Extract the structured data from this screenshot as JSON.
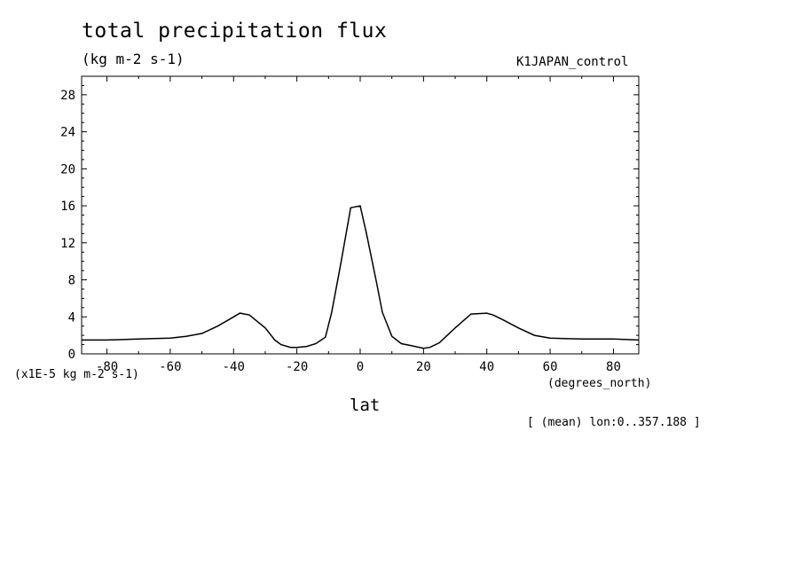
{
  "chart_data": {
    "type": "line",
    "title": "total precipitation flux",
    "subtitle": "(kg m-2 s-1)",
    "case_name": "K1JAPAN_control",
    "y_units_label": "(x1E-5 kg m-2 s-1)",
    "x_units_label": "(degrees_north)",
    "xlabel": "lat",
    "note": "[ (mean) lon:0..357.188 ]",
    "xlim": [
      -88,
      88
    ],
    "ylim": [
      0,
      30
    ],
    "xticks": [
      -80,
      -60,
      -40,
      -20,
      0,
      20,
      40,
      60,
      80
    ],
    "xtick_labels": [
      "-80",
      "-60",
      "-40",
      "-20",
      "0",
      "20",
      "40",
      "60",
      "80"
    ],
    "yticks": [
      0,
      4,
      8,
      12,
      16,
      20,
      24,
      28
    ],
    "ytick_labels": [
      "0",
      "4",
      "8",
      "12",
      "16",
      "20",
      "24",
      "28"
    ],
    "grid": false,
    "series": [
      {
        "x": [
          -88,
          -80,
          -70,
          -60,
          -55,
          -50,
          -45,
          -40,
          -38,
          -35,
          -30,
          -27,
          -25,
          -22,
          -20,
          -17,
          -14,
          -11,
          -9,
          -6,
          -3,
          0,
          2,
          5,
          7,
          10,
          13,
          16,
          20,
          22,
          25,
          30,
          35,
          40,
          42,
          45,
          50,
          55,
          60,
          70,
          80,
          88
        ],
        "y": [
          1.5,
          1.5,
          1.6,
          1.7,
          1.9,
          2.2,
          3.0,
          4.0,
          4.4,
          4.2,
          2.8,
          1.5,
          1.0,
          0.7,
          0.7,
          0.8,
          1.1,
          1.8,
          4.5,
          10.0,
          15.8,
          16.0,
          13.0,
          8.0,
          4.5,
          1.9,
          1.1,
          0.9,
          0.6,
          0.7,
          1.2,
          2.8,
          4.3,
          4.4,
          4.2,
          3.7,
          2.8,
          2.0,
          1.7,
          1.6,
          1.6,
          1.5
        ]
      }
    ]
  }
}
